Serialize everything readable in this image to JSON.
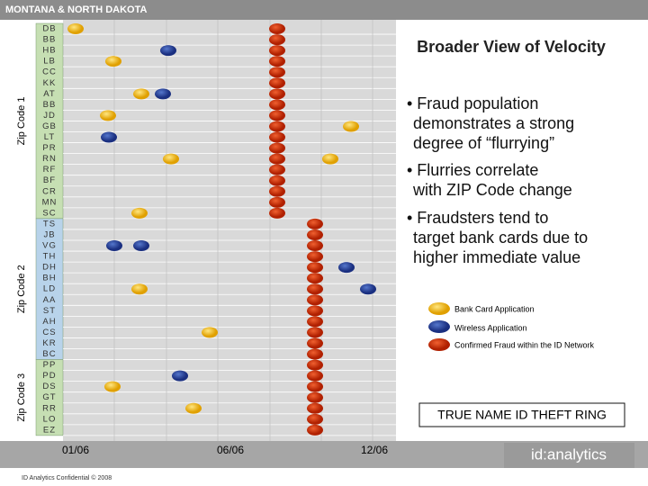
{
  "header": {
    "title": "MONTANA & NORTH DAKOTA"
  },
  "zips": [
    {
      "label": "Zip Code 1",
      "codes": [
        "DB",
        "BB",
        "HB",
        "LB",
        "CC",
        "KK",
        "AT",
        "BB",
        "JD",
        "GB",
        "LT",
        "PR",
        "RN",
        "RF",
        "BF",
        "CR",
        "MN",
        "SC"
      ]
    },
    {
      "label": "Zip Code 2",
      "codes": [
        "TS",
        "JB",
        "VG",
        "TH",
        "DH",
        "BH",
        "LD",
        "AA",
        "ST",
        "AH",
        "CS",
        "KR",
        "BC"
      ]
    },
    {
      "label": "Zip Code 3",
      "codes": [
        "PP",
        "PD",
        "DS",
        "GT",
        "RR",
        "LO",
        "EZ"
      ]
    }
  ],
  "x_labels": [
    "01/06",
    "06/06",
    "12/06"
  ],
  "panel": {
    "title": "Broader View of Velocity",
    "bullets": [
      "• Fraud population demonstrates a strong degree of “flurrying”",
      "• Flurries correlate with ZIP Code change",
      "• Fraudsters tend to target bank cards due to higher immediate value"
    ],
    "legend": [
      "Bank Card Application",
      "Wireless Application",
      "Confirmed Fraud within the ID Network"
    ],
    "ring": "TRUE NAME ID THEFT RING"
  },
  "footer": {
    "note": "ID Analytics Confidential © 2008",
    "logo": "id:analytics"
  }
}
